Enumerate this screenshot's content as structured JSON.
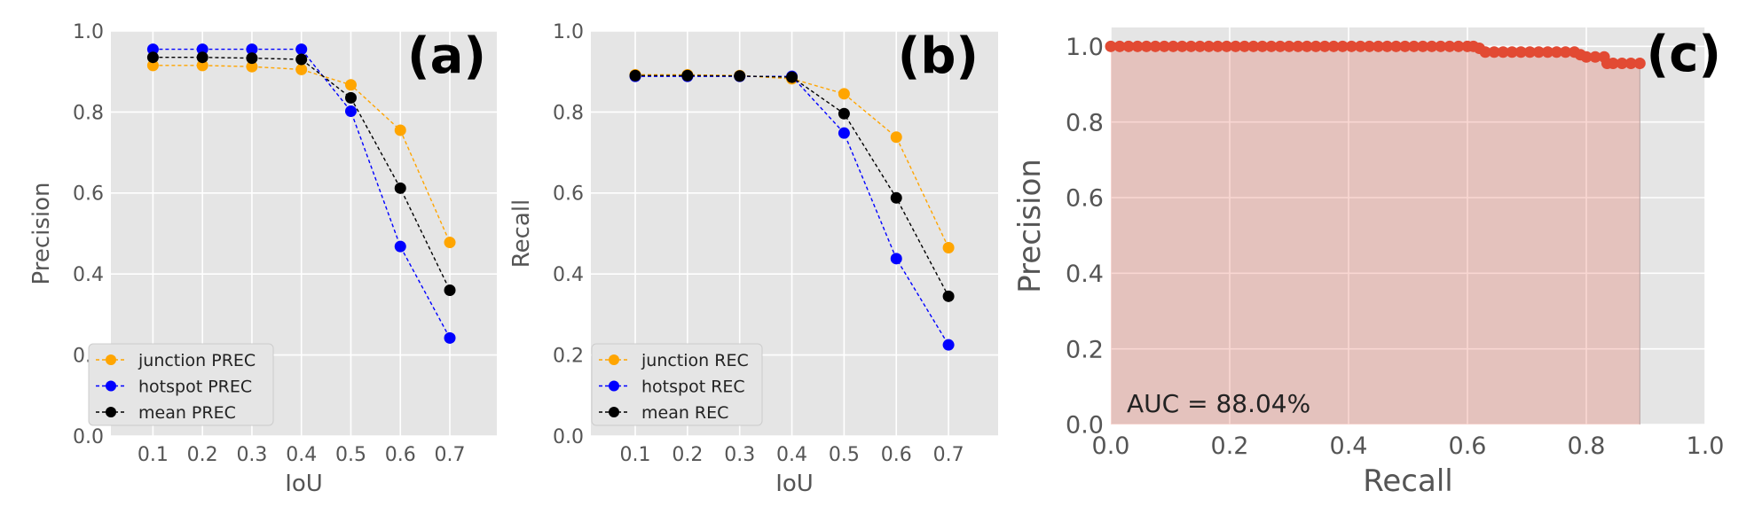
{
  "chart_data": [
    {
      "type": "line",
      "panel_label": "(a)",
      "xlabel": "IoU",
      "ylabel": "Precision",
      "x": [
        0.1,
        0.2,
        0.3,
        0.4,
        0.5,
        0.6,
        0.7
      ],
      "xticks": [
        "0.1",
        "0.2",
        "0.3",
        "0.4",
        "0.5",
        "0.6",
        "0.7"
      ],
      "yticks": [
        "0.0",
        "0.2",
        "0.4",
        "0.6",
        "0.8",
        "1.0"
      ],
      "ylim": [
        0,
        1
      ],
      "grid": true,
      "legend_position": "lower-left",
      "series": [
        {
          "name": "junction PREC",
          "color": "#FFA500",
          "values": [
            0.915,
            0.915,
            0.912,
            0.905,
            0.867,
            0.755,
            0.478
          ]
        },
        {
          "name": "hotspot PREC",
          "color": "#0000FF",
          "values": [
            0.955,
            0.955,
            0.955,
            0.955,
            0.802,
            0.468,
            0.242
          ]
        },
        {
          "name": "mean PREC",
          "color": "#000000",
          "values": [
            0.935,
            0.935,
            0.933,
            0.93,
            0.835,
            0.612,
            0.36
          ]
        }
      ]
    },
    {
      "type": "line",
      "panel_label": "(b)",
      "xlabel": "IoU",
      "ylabel": "Recall",
      "x": [
        0.1,
        0.2,
        0.3,
        0.4,
        0.5,
        0.6,
        0.7
      ],
      "xticks": [
        "0.1",
        "0.2",
        "0.3",
        "0.4",
        "0.5",
        "0.6",
        "0.7"
      ],
      "yticks": [
        "0.0",
        "0.2",
        "0.4",
        "0.6",
        "0.8",
        "1.0"
      ],
      "ylim": [
        0,
        1
      ],
      "grid": true,
      "legend_position": "lower-left",
      "series": [
        {
          "name": "junction REC",
          "color": "#FFA500",
          "values": [
            0.892,
            0.892,
            0.89,
            0.882,
            0.845,
            0.738,
            0.465
          ]
        },
        {
          "name": "hotspot REC",
          "color": "#0000FF",
          "values": [
            0.888,
            0.888,
            0.888,
            0.888,
            0.748,
            0.438,
            0.225
          ]
        },
        {
          "name": "mean REC",
          "color": "#000000",
          "values": [
            0.89,
            0.89,
            0.889,
            0.886,
            0.796,
            0.588,
            0.345
          ]
        }
      ]
    },
    {
      "type": "area",
      "panel_label": "(c)",
      "xlabel": "Recall",
      "ylabel": "Precision",
      "xticks": [
        "0.0",
        "0.2",
        "0.4",
        "0.6",
        "0.8",
        "1.0"
      ],
      "yticks": [
        "0.0",
        "0.2",
        "0.4",
        "0.6",
        "0.8",
        "1.0"
      ],
      "xlim": [
        0,
        1
      ],
      "ylim": [
        0,
        1.05
      ],
      "grid": true,
      "annotation": "AUC = 88.04%",
      "series": [
        {
          "color": "#E24A33",
          "x": [
            0.0,
            0.015,
            0.03,
            0.045,
            0.06,
            0.075,
            0.09,
            0.105,
            0.12,
            0.135,
            0.15,
            0.165,
            0.18,
            0.195,
            0.21,
            0.225,
            0.24,
            0.255,
            0.27,
            0.285,
            0.3,
            0.315,
            0.33,
            0.345,
            0.36,
            0.375,
            0.39,
            0.405,
            0.42,
            0.435,
            0.45,
            0.465,
            0.48,
            0.495,
            0.51,
            0.525,
            0.54,
            0.555,
            0.57,
            0.585,
            0.6,
            0.61,
            0.62,
            0.63,
            0.645,
            0.66,
            0.675,
            0.69,
            0.705,
            0.72,
            0.735,
            0.75,
            0.765,
            0.78,
            0.79,
            0.8,
            0.815,
            0.83,
            0.835,
            0.845,
            0.86,
            0.875,
            0.89
          ],
          "y": [
            1.0,
            1.0,
            1.0,
            1.0,
            1.0,
            1.0,
            1.0,
            1.0,
            1.0,
            1.0,
            1.0,
            1.0,
            1.0,
            1.0,
            1.0,
            1.0,
            1.0,
            1.0,
            1.0,
            1.0,
            1.0,
            1.0,
            1.0,
            1.0,
            1.0,
            1.0,
            1.0,
            1.0,
            1.0,
            1.0,
            1.0,
            1.0,
            1.0,
            1.0,
            1.0,
            1.0,
            1.0,
            1.0,
            1.0,
            1.0,
            1.0,
            1.0,
            0.995,
            0.985,
            0.985,
            0.985,
            0.985,
            0.985,
            0.985,
            0.985,
            0.985,
            0.985,
            0.985,
            0.985,
            0.978,
            0.972,
            0.972,
            0.972,
            0.955,
            0.955,
            0.955,
            0.955,
            0.955
          ]
        }
      ]
    }
  ]
}
